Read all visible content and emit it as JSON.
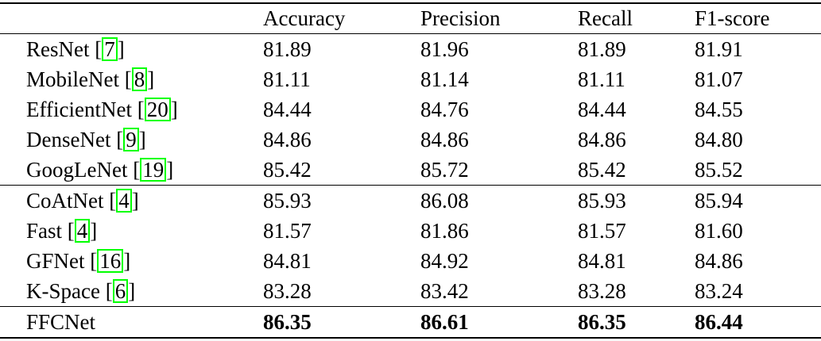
{
  "table": {
    "headers": [
      "",
      "Accuracy",
      "Precision",
      "Recall",
      "F1-score"
    ],
    "rows": [
      {
        "model": "ResNet",
        "cite": "7",
        "values": [
          "81.89",
          "81.96",
          "81.89",
          "81.91"
        ]
      },
      {
        "model": "MobileNet",
        "cite": "8",
        "values": [
          "81.11",
          "81.14",
          "81.11",
          "81.07"
        ]
      },
      {
        "model": "EfficientNet",
        "cite": "20",
        "values": [
          "84.44",
          "84.76",
          "84.44",
          "84.55"
        ]
      },
      {
        "model": "DenseNet",
        "cite": "9",
        "values": [
          "84.86",
          "84.86",
          "84.86",
          "84.80"
        ]
      },
      {
        "model": "GoogLeNet",
        "cite": "19",
        "values": [
          "85.42",
          "85.72",
          "85.42",
          "85.52"
        ]
      },
      {
        "model": "CoAtNet",
        "cite": "4",
        "values": [
          "85.93",
          "86.08",
          "85.93",
          "85.94"
        ]
      },
      {
        "model": "Fast",
        "cite": "4",
        "values": [
          "81.57",
          "81.86",
          "81.57",
          "81.60"
        ]
      },
      {
        "model": "GFNet",
        "cite": "16",
        "values": [
          "84.81",
          "84.92",
          "84.81",
          "84.86"
        ]
      },
      {
        "model": "K-Space",
        "cite": "6",
        "values": [
          "83.28",
          "83.42",
          "83.28",
          "83.24"
        ]
      },
      {
        "model": "FFCNet",
        "cite": null,
        "values": [
          "86.35",
          "86.61",
          "86.35",
          "86.44"
        ]
      }
    ],
    "citation_box_color": "#00ff00"
  }
}
